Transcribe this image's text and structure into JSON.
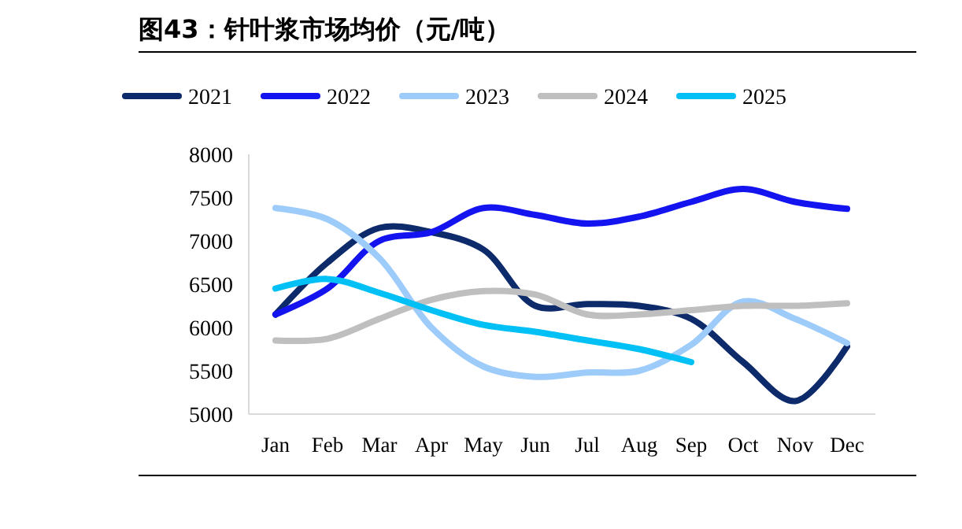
{
  "chart_data": {
    "type": "line",
    "title": "图43：针叶浆市场均价（元/吨）",
    "categories": [
      "Jan",
      "Feb",
      "Mar",
      "Apr",
      "May",
      "Jun",
      "Jul",
      "Aug",
      "Sep",
      "Oct",
      "Nov",
      "Dec"
    ],
    "series": [
      {
        "name": "2021",
        "color": "#0d2a6b",
        "values": [
          6150,
          6750,
          7150,
          7100,
          6900,
          6250,
          6270,
          6250,
          6100,
          5600,
          5150,
          5780
        ]
      },
      {
        "name": "2022",
        "color": "#1414f0",
        "values": [
          6150,
          6450,
          7000,
          7100,
          7380,
          7300,
          7200,
          7280,
          7450,
          7600,
          7450,
          7370
        ]
      },
      {
        "name": "2023",
        "color": "#9dcbfa",
        "values": [
          7380,
          7250,
          6800,
          6000,
          5550,
          5430,
          5480,
          5500,
          5800,
          6300,
          6100,
          5820
        ]
      },
      {
        "name": "2024",
        "color": "#bfbfbf",
        "values": [
          5850,
          5870,
          6100,
          6320,
          6420,
          6380,
          6150,
          6150,
          6200,
          6250,
          6250,
          6280
        ]
      },
      {
        "name": "2025",
        "color": "#00c0f5",
        "values": [
          6450,
          6560,
          6400,
          6200,
          6030,
          5950,
          5850,
          5750,
          5600,
          null,
          null,
          null
        ]
      }
    ],
    "ylim": [
      5000,
      8000
    ],
    "yticks": [
      5000,
      5500,
      6000,
      6500,
      7000,
      7500,
      8000
    ],
    "grid": false,
    "legend": "top",
    "marker": "none",
    "line_style": "solid"
  }
}
